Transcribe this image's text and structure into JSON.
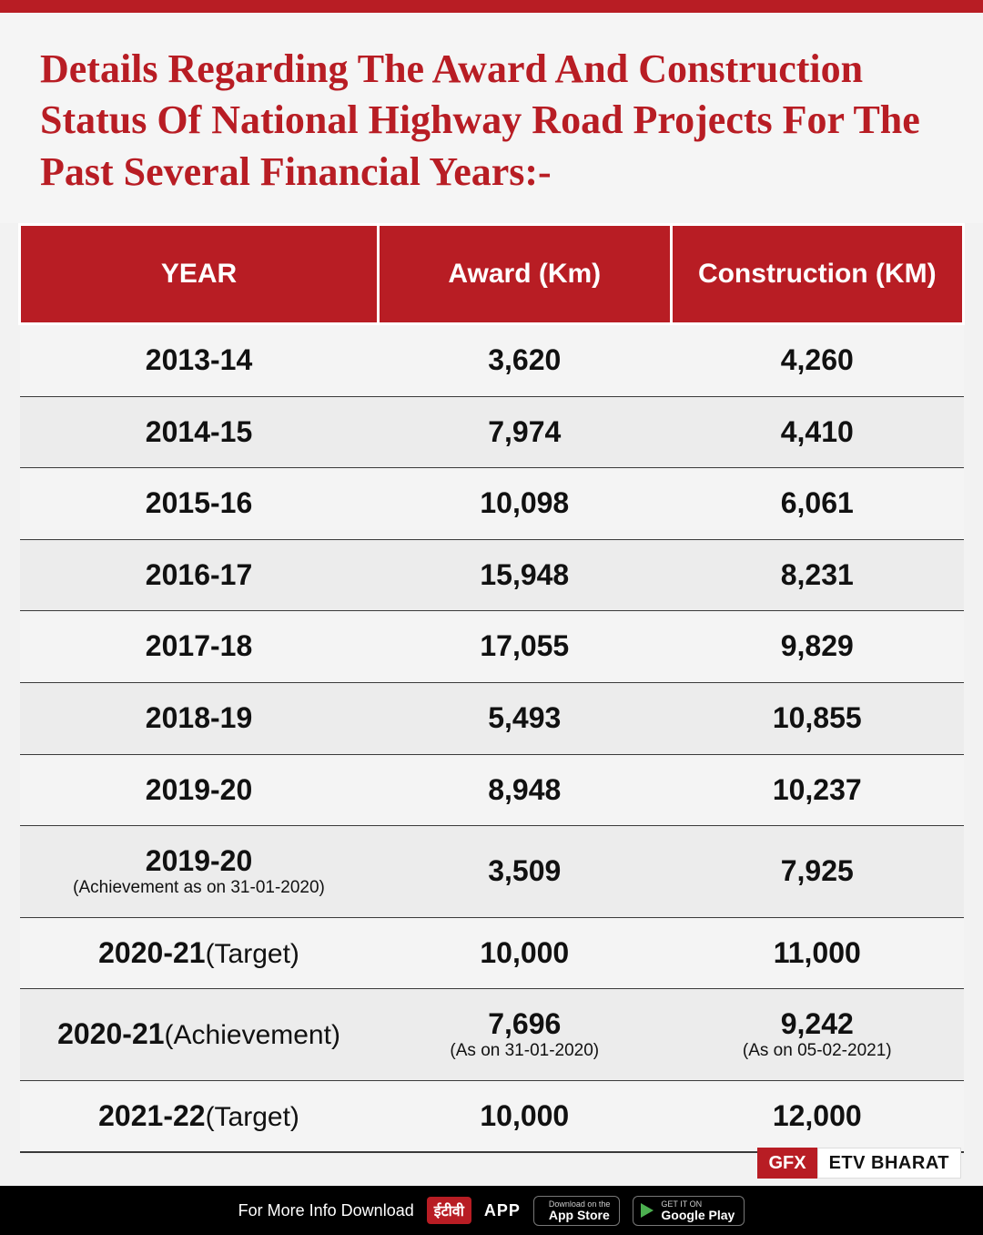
{
  "colors": {
    "accent": "#b81d24",
    "header_text": "#ffffff",
    "body_text": "#111111",
    "row_odd_bg": "#f4f4f4",
    "row_even_bg": "#ececec",
    "page_bg": "#f2f2f2",
    "footer_bg": "#000000"
  },
  "title": "Details Regarding The Award And Construction Status Of National Highway Road Projects For The Past Several Financial Years:-",
  "table": {
    "columns": [
      "YEAR",
      "Award (Km)",
      "Construction (KM)"
    ],
    "rows": [
      {
        "year": "2013-14",
        "year_sub": "",
        "award": "3,620",
        "award_sub": "",
        "construction": "4,260",
        "construction_sub": ""
      },
      {
        "year": "2014-15",
        "year_sub": "",
        "award": "7,974",
        "award_sub": "",
        "construction": "4,410",
        "construction_sub": ""
      },
      {
        "year": "2015-16",
        "year_sub": "",
        "award": "10,098",
        "award_sub": "",
        "construction": "6,061",
        "construction_sub": ""
      },
      {
        "year": "2016-17",
        "year_sub": "",
        "award": "15,948",
        "award_sub": "",
        "construction": "8,231",
        "construction_sub": ""
      },
      {
        "year": "2017-18",
        "year_sub": "",
        "award": "17,055",
        "award_sub": "",
        "construction": "9,829",
        "construction_sub": ""
      },
      {
        "year": "2018-19",
        "year_sub": "",
        "award": "5,493",
        "award_sub": "",
        "construction": "10,855",
        "construction_sub": ""
      },
      {
        "year": "2019-20",
        "year_sub": "",
        "award": "8,948",
        "award_sub": "",
        "construction": "10,237",
        "construction_sub": ""
      },
      {
        "year": "2019-20",
        "year_sub": "(Achievement as on 31-01-2020)",
        "award": "3,509",
        "award_sub": "",
        "construction": "7,925",
        "construction_sub": ""
      },
      {
        "year": "2020-21",
        "year_sub": "(Target)",
        "award": "10,000",
        "award_sub": "",
        "construction": "11,000",
        "construction_sub": ""
      },
      {
        "year": "2020-21",
        "year_sub": "(Achievement)",
        "award": "7,696",
        "award_sub": "(As on 31-01-2020)",
        "construction": "9,242",
        "construction_sub": "(As on 05-02-2021)"
      },
      {
        "year": "2021-22",
        "year_sub": "(Target)",
        "award": "10,000",
        "award_sub": "",
        "construction": "12,000",
        "construction_sub": ""
      }
    ]
  },
  "brand": {
    "gfx": "GFX",
    "etv": "ETV BHARAT"
  },
  "footer": {
    "lead_text": "For More Info Download",
    "app_badge": "ईटीवी",
    "app_text": "APP",
    "appstore": {
      "mini": "Download on the",
      "major": "App Store"
    },
    "playstore": {
      "mini": "GET IT ON",
      "major": "Google Play"
    }
  }
}
